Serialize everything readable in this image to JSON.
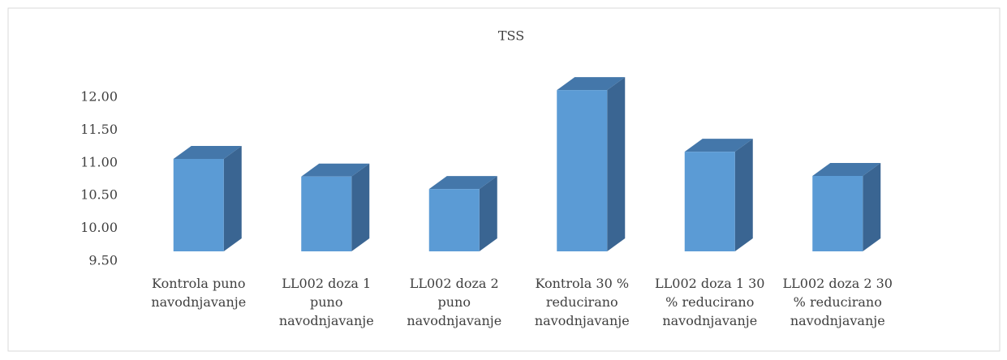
{
  "chart_data": {
    "type": "bar3d",
    "title": "TSS",
    "categories": [
      "Kontrola puno navodnjavanje",
      "LL002 doza 1 puno navodnjavanje",
      "LL002 doza 2 puno navodnjavanje",
      "Kontrola 30 % reducirano navodnjavanje",
      "LL002 doza 1 30 % reducirano navodnjavanje",
      "LL002 doza 2 30 % reducirano navodnjavanje"
    ],
    "values": [
      11.06,
      10.79,
      10.6,
      12.11,
      11.17,
      10.8
    ],
    "color": "#5b9bd5",
    "ylim": [
      9.5,
      12.0
    ],
    "yticks": [
      {
        "value": 9.5,
        "label": "9.50"
      },
      {
        "value": 10.0,
        "label": "10.00"
      },
      {
        "value": 10.5,
        "label": "10.50"
      },
      {
        "value": 11.0,
        "label": "11.00"
      },
      {
        "value": 11.5,
        "label": "11.50"
      },
      {
        "value": 12.0,
        "label": "12.00"
      }
    ],
    "grid": false
  }
}
